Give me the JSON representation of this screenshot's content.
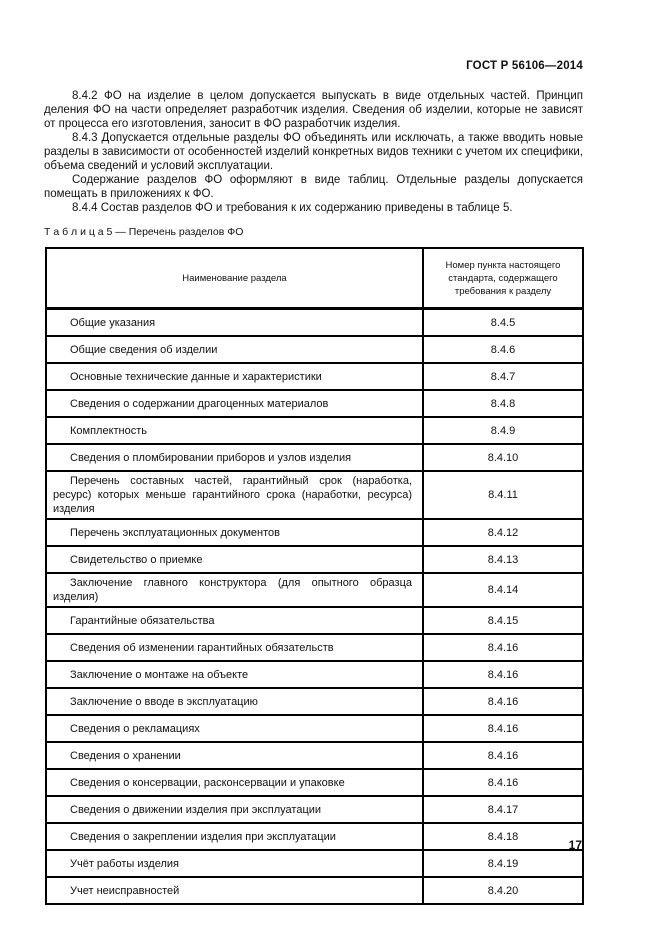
{
  "header": {
    "doc_number": "ГОСТ Р 56106—2014"
  },
  "paragraphs": [
    "8.4.2 ФО на изделие в целом допускается выпускать в виде отдельных частей. Принцип деления ФО на части определяет разработчик изделия. Сведения об изделии, которые не зависят от процесса его изготовления, заносит в ФО разработчик изделия.",
    "8.4.3 Допускается отдельные разделы ФО объединять или исключать, а также вводить новые разделы в зависимости от особенностей изделий конкретных видов техники с учетом их специфики, объема сведений и условий эксплуатации.",
    "Содержание разделов ФО оформляют в виде таблиц. Отдельные разделы допускается помещать в приложениях к ФО.",
    "8.4.4 Состав разделов ФО и требования к их содержанию приведены в таблице 5."
  ],
  "table": {
    "caption": "Т а б л и ц а  5 — Перечень разделов ФО",
    "columns": {
      "name": "Наименование раздела",
      "clause": "Номер пункта настоящего стандарта, содержащего требования к разделу"
    },
    "rows": [
      {
        "name": "Общие указания",
        "clause": "8.4.5"
      },
      {
        "name": "Общие сведения об изделии",
        "clause": "8.4.6"
      },
      {
        "name": "Основные технические данные и характеристики",
        "clause": "8.4.7"
      },
      {
        "name": "Сведения о содержании драгоценных материалов",
        "clause": "8.4.8"
      },
      {
        "name": "Комплектность",
        "clause": "8.4.9"
      },
      {
        "name": "Сведения о пломбировании приборов и узлов изделия",
        "clause": "8.4.10"
      },
      {
        "name": "Перечень составных частей, гарантийный срок (наработка, ресурс) которых меньше гарантийного срока (наработки, ресурса) изделия",
        "clause": "8.4.11"
      },
      {
        "name": "Перечень эксплуатационных документов",
        "clause": "8.4.12"
      },
      {
        "name": "Свидетельство о приемке",
        "clause": "8.4.13"
      },
      {
        "name": "Заключение главного конструктора (для опытного образца изделия)",
        "clause": "8.4.14"
      },
      {
        "name": "Гарантийные обязательства",
        "clause": "8.4.15"
      },
      {
        "name": "Сведения об изменении гарантийных обязательств",
        "clause": "8.4.16"
      },
      {
        "name": "Заключение о монтаже на объекте",
        "clause": "8.4.16"
      },
      {
        "name": "Заключение о вводе в эксплуатацию",
        "clause": "8.4.16"
      },
      {
        "name": "Сведения о рекламациях",
        "clause": "8.4.16"
      },
      {
        "name": "Сведения о хранении",
        "clause": "8.4.16"
      },
      {
        "name": "Сведения о консервации, расконсервации и упаковке",
        "clause": "8.4.16"
      },
      {
        "name": "Сведения о движении изделия при эксплуатации",
        "clause": "8.4.17"
      },
      {
        "name": "Сведения о закреплении изделия при эксплуатации",
        "clause": "8.4.18"
      },
      {
        "name": "Учёт работы изделия",
        "clause": "8.4.19"
      },
      {
        "name": "Учет неисправностей",
        "clause": "8.4.20"
      }
    ]
  },
  "footer": {
    "page_number": "17"
  }
}
